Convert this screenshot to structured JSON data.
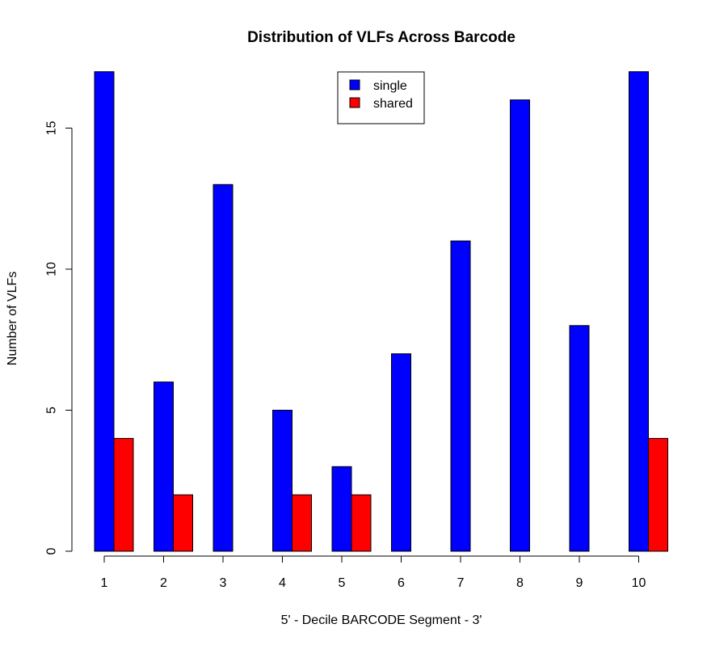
{
  "chart_data": {
    "type": "bar",
    "title": "Distribution of VLFs Across Barcode",
    "xlabel": "5' - Decile BARCODE Segment - 3'",
    "ylabel": "Number of VLFs",
    "categories": [
      "1",
      "2",
      "3",
      "4",
      "5",
      "6",
      "7",
      "8",
      "9",
      "10"
    ],
    "series": [
      {
        "name": "single",
        "color": "#0000ff",
        "values": [
          17,
          6,
          13,
          5,
          3,
          7,
          11,
          16,
          8,
          17
        ]
      },
      {
        "name": "shared",
        "color": "#ff0000",
        "values": [
          4,
          2,
          0,
          2,
          2,
          0,
          0,
          0,
          0,
          4
        ]
      }
    ],
    "ylim": [
      0,
      17
    ],
    "yticks": [
      0,
      5,
      10,
      15
    ],
    "grid": false,
    "legend_position": "top-center"
  }
}
